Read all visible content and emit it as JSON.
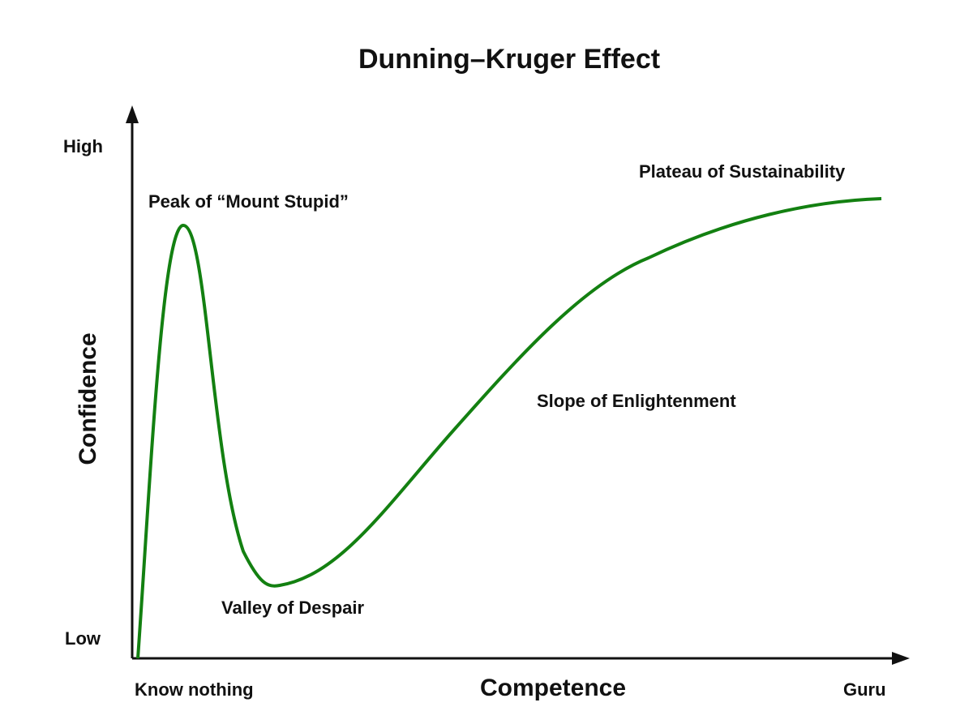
{
  "title": "Dunning–Kruger Effect",
  "axes": {
    "y_label": "Confidence",
    "x_label": "Competence",
    "y_high": "High",
    "y_low": "Low",
    "x_start": "Know nothing",
    "x_end": "Guru"
  },
  "annotations": [
    "Peak of “Mount Stupid”",
    "Valley of Despair",
    "Slope of Enlightenment",
    "Plateau of Sustainability"
  ]
}
